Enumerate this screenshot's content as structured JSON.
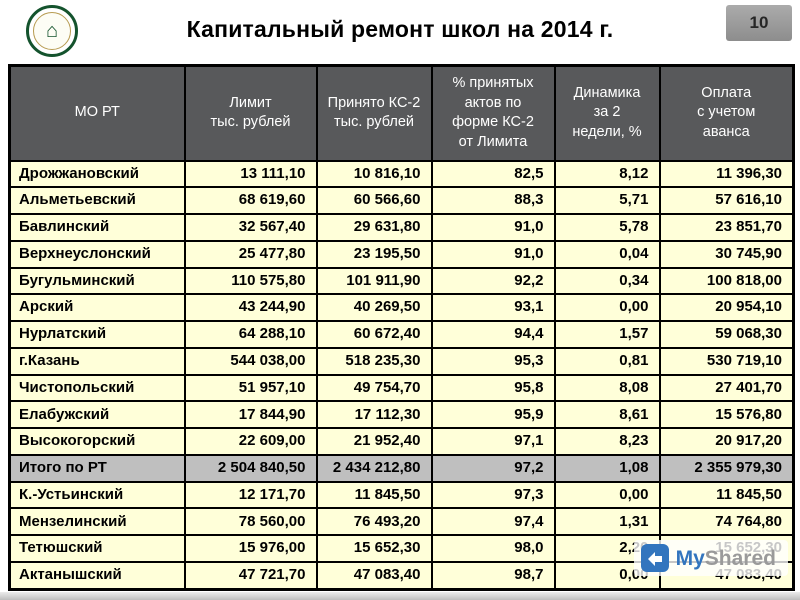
{
  "slide": {
    "title": "Капитальный ремонт школ на 2014 г.",
    "page_number": "10"
  },
  "logo": {
    "glyph": "⌂"
  },
  "table": {
    "headers": [
      "МО РТ",
      "Лимит\nтыс. рублей",
      "Принято КС-2\nтыс. рублей",
      "% принятых\nактов по\nформе КС-2\nот Лимита",
      "Динамика\nза 2\nнедели, %",
      "Оплата\nс учетом\nаванса"
    ],
    "rows": [
      {
        "cells": [
          "Дрожжановский",
          "13 111,10",
          "10 816,10",
          "82,5",
          "8,12",
          "11 396,30"
        ],
        "total": false
      },
      {
        "cells": [
          "Альметьевский",
          "68 619,60",
          "60 566,60",
          "88,3",
          "5,71",
          "57 616,10"
        ],
        "total": false
      },
      {
        "cells": [
          "Бавлинский",
          "32 567,40",
          "29 631,80",
          "91,0",
          "5,78",
          "23 851,70"
        ],
        "total": false
      },
      {
        "cells": [
          "Верхнеуслонский",
          "25 477,80",
          "23 195,50",
          "91,0",
          "0,04",
          "30 745,90"
        ],
        "total": false
      },
      {
        "cells": [
          "Бугульминский",
          "110 575,80",
          "101 911,90",
          "92,2",
          "0,34",
          "100 818,00"
        ],
        "total": false
      },
      {
        "cells": [
          "Арский",
          "43 244,90",
          "40 269,50",
          "93,1",
          "0,00",
          "20 954,10"
        ],
        "total": false
      },
      {
        "cells": [
          "Нурлатский",
          "64 288,10",
          "60 672,40",
          "94,4",
          "1,57",
          "59 068,30"
        ],
        "total": false
      },
      {
        "cells": [
          "г.Казань",
          "544 038,00",
          "518 235,30",
          "95,3",
          "0,81",
          "530 719,10"
        ],
        "total": false
      },
      {
        "cells": [
          "Чистопольский",
          "51 957,10",
          "49 754,70",
          "95,8",
          "8,08",
          "27 401,70"
        ],
        "total": false
      },
      {
        "cells": [
          "Елабужский",
          "17 844,90",
          "17 112,30",
          "95,9",
          "8,61",
          "15 576,80"
        ],
        "total": false
      },
      {
        "cells": [
          "Высокогорский",
          "22 609,00",
          "21 952,40",
          "97,1",
          "8,23",
          "20 917,20"
        ],
        "total": false
      },
      {
        "cells": [
          "Итого по РТ",
          "2 504 840,50",
          "2 434 212,80",
          "97,2",
          "1,08",
          "2 355 979,30"
        ],
        "total": true
      },
      {
        "cells": [
          "К.-Устьинский",
          "12 171,70",
          "11 845,50",
          "97,3",
          "0,00",
          "11 845,50"
        ],
        "total": false
      },
      {
        "cells": [
          "Мензелинский",
          "78 560,00",
          "76 493,20",
          "97,4",
          "1,31",
          "74 764,80"
        ],
        "total": false
      },
      {
        "cells": [
          "Тетюшский",
          "15 976,00",
          "15 652,30",
          "98,0",
          "2,20",
          "15 652,30"
        ],
        "total": false
      },
      {
        "cells": [
          "Актанышский",
          "47 721,70",
          "47 083,40",
          "98,7",
          "0,00",
          "47 083,40"
        ],
        "total": false
      }
    ]
  },
  "watermark": {
    "brand_my": "My",
    "brand_shared": "Shared"
  },
  "colors": {
    "header_bg": "#58595b",
    "row_bg": "#ffffd9",
    "total_bg": "#bfbfbf",
    "border": "#000000",
    "accent_blue": "#3275be",
    "logo_green": "#14532d"
  }
}
